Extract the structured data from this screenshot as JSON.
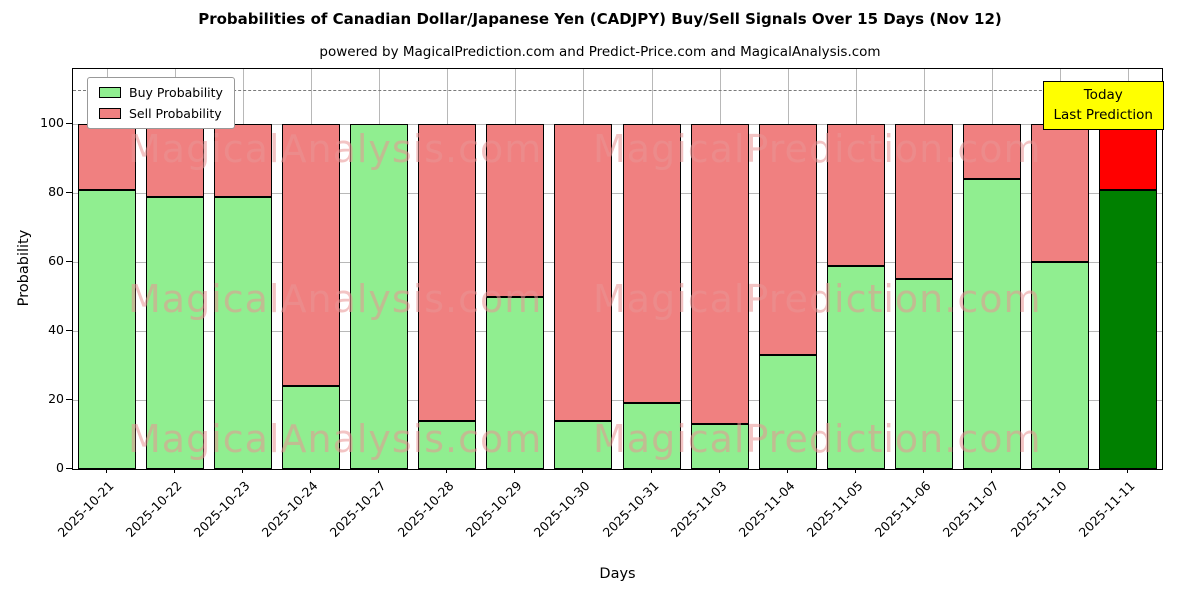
{
  "figure": {
    "title": "Probabilities of Canadian Dollar/Japanese Yen (CADJPY) Buy/Sell Signals Over 15 Days (Nov 12)",
    "subtitle": "powered by MagicalPrediction.com and Predict-Price.com and MagicalAnalysis.com"
  },
  "annotation": {
    "line1": "Today",
    "line2": "Last Prediction"
  },
  "watermarks": [
    "MagicalAnalysis.com",
    "MagicalPrediction.com"
  ],
  "chart_data": {
    "type": "bar",
    "stacked": true,
    "title": "Probabilities of Canadian Dollar/Japanese Yen (CADJPY) Buy/Sell Signals Over 15 Days (Nov 12)",
    "subtitle": "powered by MagicalPrediction.com and Predict-Price.com and MagicalAnalysis.com",
    "xlabel": "Days",
    "ylabel": "Probability",
    "categories": [
      "2025-10-21",
      "2025-10-22",
      "2025-10-23",
      "2025-10-24",
      "2025-10-27",
      "2025-10-28",
      "2025-10-29",
      "2025-10-30",
      "2025-10-31",
      "2025-11-03",
      "2025-11-04",
      "2025-11-05",
      "2025-11-06",
      "2025-11-07",
      "2025-11-10",
      "2025-11-11"
    ],
    "series": [
      {
        "name": "Buy Probability",
        "color": "#90ee90",
        "values": [
          81,
          79,
          79,
          24,
          100,
          14,
          50,
          14,
          19,
          13,
          33,
          59,
          55,
          84,
          60,
          81
        ]
      },
      {
        "name": "Sell Probability",
        "color": "#f08080",
        "values": [
          19,
          21,
          21,
          76,
          0,
          86,
          50,
          86,
          81,
          87,
          67,
          41,
          45,
          16,
          40,
          19
        ]
      }
    ],
    "last_bar_colors": {
      "buy": "#008000",
      "sell": "#ff0000"
    },
    "yticks": [
      0,
      20,
      40,
      60,
      80,
      100
    ],
    "ylim": [
      0,
      116
    ],
    "dashed_line_y": 110,
    "grid": true,
    "legend_position": "top-left"
  }
}
